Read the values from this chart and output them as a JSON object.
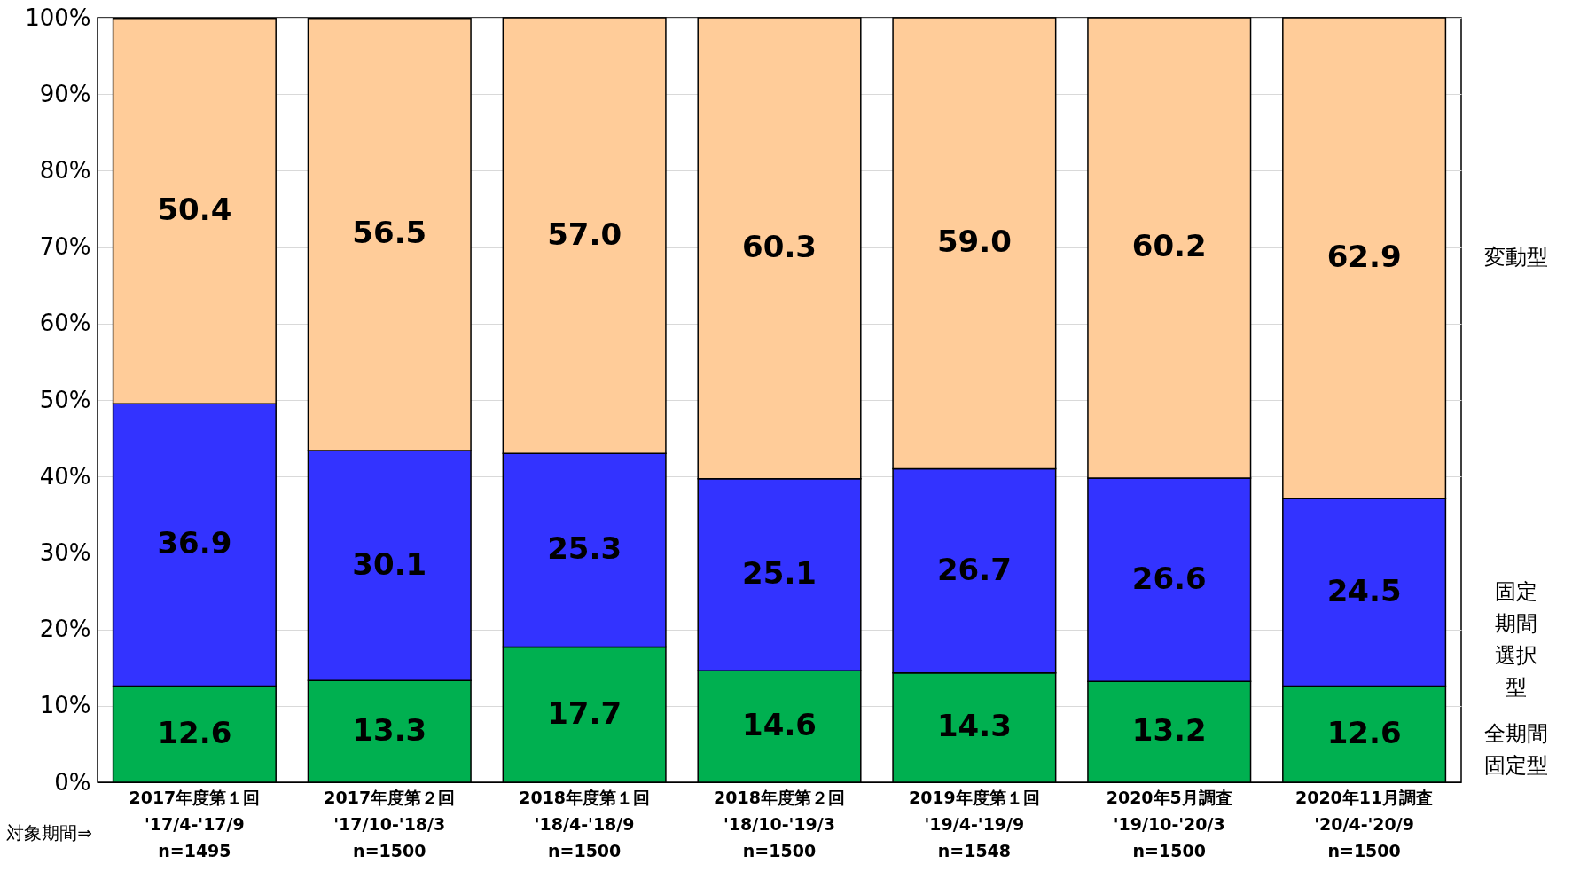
{
  "chart_data": {
    "type": "bar",
    "stacked": true,
    "data_labels": true,
    "categories": [
      "2017年度第１回\n'17/4-'17/9\nn=1495",
      "2017年度第２回\n'17/10-'18/3\nn=1500",
      "2018年度第１回\n'18/4-'18/9\nn=1500",
      "2018年度第２回\n'18/10-'19/3\nn=1500",
      "2019年度第１回\n'19/4-'19/9\nn=1548",
      "2020年5月調査\n'19/10-'20/3\nn=1500",
      "2020年11月調査\n'20/4-'20/9\nn=1500"
    ],
    "series": [
      {
        "name": "全期間固定型",
        "color": "#00b050",
        "values": [
          12.6,
          13.3,
          17.7,
          14.6,
          14.3,
          13.2,
          12.6
        ]
      },
      {
        "name": "固定期間選択型",
        "color": "#3333ff",
        "values": [
          36.9,
          30.1,
          25.3,
          25.1,
          26.7,
          26.6,
          24.5
        ]
      },
      {
        "name": "変動型",
        "color": "#ffcc99",
        "values": [
          50.4,
          56.5,
          57.0,
          60.3,
          59.0,
          60.2,
          62.9
        ],
        "value_labels": [
          "50.4",
          "56.5",
          "57.0",
          "60.3",
          "59.0",
          "60.2",
          "62.9"
        ]
      }
    ],
    "ylim": [
      0,
      100
    ],
    "yticks": [
      {
        "value": 0,
        "label": "0%"
      },
      {
        "value": 10,
        "label": "10%"
      },
      {
        "value": 20,
        "label": "20%"
      },
      {
        "value": 30,
        "label": "30%"
      },
      {
        "value": 40,
        "label": "40%"
      },
      {
        "value": 50,
        "label": "50%"
      },
      {
        "value": 60,
        "label": "60%"
      },
      {
        "value": 70,
        "label": "70%"
      },
      {
        "value": 80,
        "label": "80%"
      },
      {
        "value": 90,
        "label": "90%"
      },
      {
        "value": 100,
        "label": "100%"
      }
    ],
    "grid": "y",
    "annotations": [
      "対象期間⇒"
    ]
  }
}
